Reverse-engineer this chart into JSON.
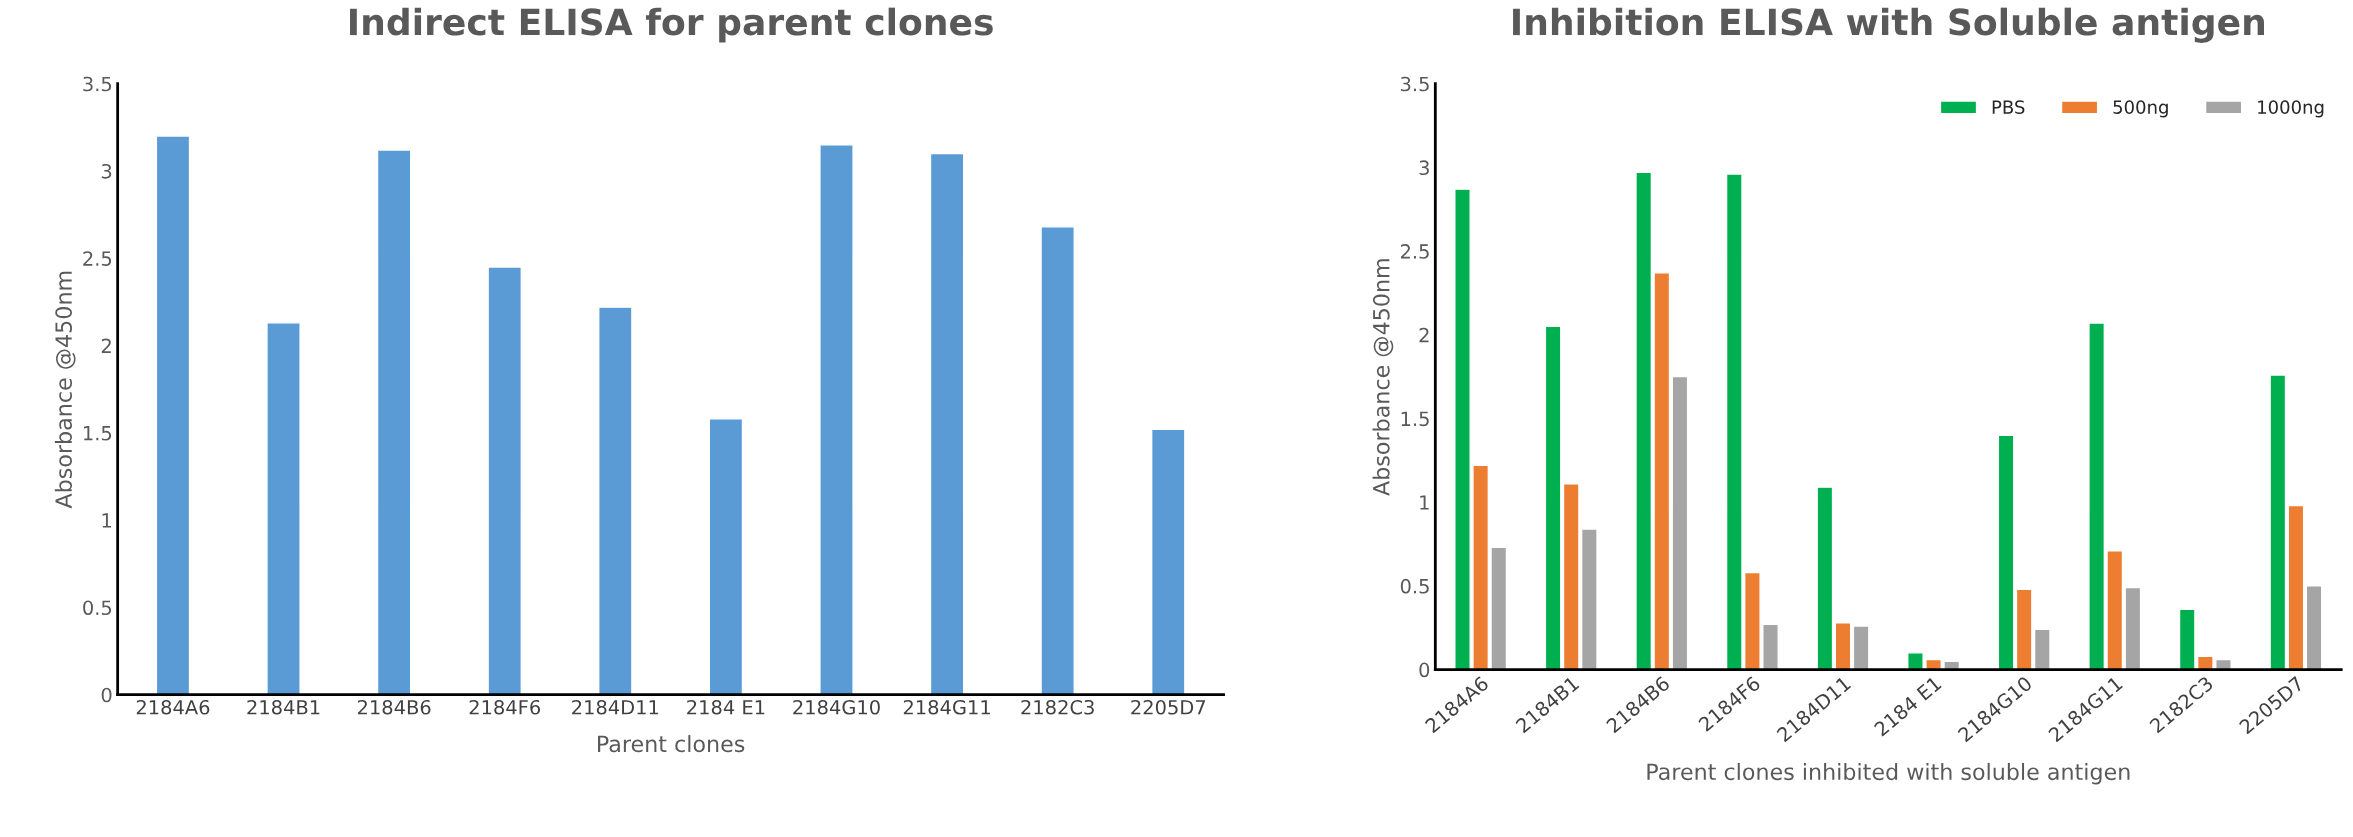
{
  "chart_data": [
    {
      "type": "bar",
      "title": "Indirect ELISA for parent clones",
      "xlabel": "Parent clones",
      "ylabel": "Absorbance @450nm",
      "categories": [
        "2184A6",
        "2184B1",
        "2184B6",
        "2184F6",
        "2184D11",
        "2184 E1",
        "2184G10",
        "2184G11",
        "2182C3",
        "2205D7"
      ],
      "values": [
        3.2,
        2.13,
        3.12,
        2.45,
        2.22,
        1.58,
        3.15,
        3.1,
        2.68,
        1.52
      ],
      "color": "#5b9bd5",
      "ylim": [
        0,
        3.5
      ],
      "yticks": [
        0,
        0.5,
        1,
        1.5,
        2,
        2.5,
        3,
        3.5
      ],
      "grid": false
    },
    {
      "type": "bar",
      "title": "Inhibition ELISA with Soluble antigen",
      "xlabel": "Parent clones inhibited with soluble antigen",
      "ylabel": "Absorbance @450nm",
      "categories": [
        "2184A6",
        "2184B1",
        "2184B6",
        "2184F6",
        "2184D11",
        "2184 E1",
        "2184G10",
        "2184G11",
        "2182C3",
        "2205D7"
      ],
      "series": [
        {
          "name": "PBS",
          "color": "#00b050",
          "values": [
            2.87,
            2.05,
            2.97,
            2.96,
            1.09,
            0.1,
            1.4,
            2.07,
            0.36,
            1.76
          ]
        },
        {
          "name": "500ng",
          "color": "#ed7d31",
          "values": [
            1.22,
            1.11,
            2.37,
            0.58,
            0.28,
            0.06,
            0.48,
            0.71,
            0.08,
            0.98
          ]
        },
        {
          "name": "1000ng",
          "color": "#a5a5a5",
          "values": [
            0.73,
            0.84,
            1.75,
            0.27,
            0.26,
            0.05,
            0.24,
            0.49,
            0.06,
            0.5
          ]
        }
      ],
      "ylim": [
        0,
        3.5
      ],
      "yticks": [
        0,
        0.5,
        1,
        1.5,
        2,
        2.5,
        3,
        3.5
      ],
      "grid": false,
      "legend": "top right"
    }
  ]
}
